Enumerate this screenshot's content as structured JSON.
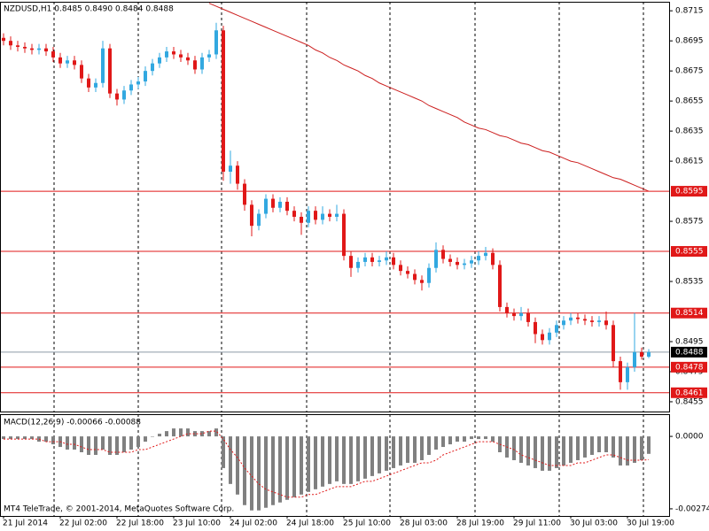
{
  "chart_data": [
    {
      "type": "candlestick",
      "title": "NZDUSD,H1  0.8485 0.8490 0.8484 0.8488",
      "x": [
        "21 Jul 2014",
        null,
        null,
        null,
        null,
        null,
        null,
        null,
        "22 Jul 02:00",
        null,
        null,
        null,
        null,
        null,
        null,
        null,
        "22 Jul 18:00",
        null,
        null,
        null,
        null,
        null,
        null,
        null,
        "23 Jul 10:00",
        null,
        null,
        null,
        null,
        null,
        null,
        null,
        "24 Jul 02:00",
        null,
        null,
        null,
        null,
        null,
        null,
        null,
        "24 Jul 18:00",
        null,
        null,
        null,
        null,
        null,
        null,
        null,
        "25 Jul 10:00",
        null,
        null,
        null,
        null,
        null,
        null,
        null,
        "28 Jul 03:00",
        null,
        null,
        null,
        null,
        null,
        null,
        null,
        "28 Jul 19:00",
        null,
        null,
        null,
        null,
        null,
        null,
        null,
        "29 Jul 11:00",
        null,
        null,
        null,
        null,
        null,
        null,
        null,
        "30 Jul 03:00",
        null,
        null,
        null,
        null,
        null,
        null,
        null,
        "30 Jul 19:00",
        null,
        null,
        null
      ],
      "open": [
        0.8697,
        0.8695,
        0.8692,
        0.8691,
        0.869,
        0.8689,
        0.869,
        0.8688,
        0.8684,
        0.868,
        0.8682,
        0.8679,
        0.867,
        0.8664,
        0.8667,
        0.869,
        0.866,
        0.8656,
        0.8662,
        0.8666,
        0.8668,
        0.8675,
        0.868,
        0.8684,
        0.8688,
        0.8686,
        0.8684,
        0.8682,
        0.8676,
        0.8684,
        0.8686,
        0.8702,
        0.8608,
        0.8612,
        0.86,
        0.8586,
        0.8572,
        0.858,
        0.859,
        0.8584,
        0.8588,
        0.8582,
        0.8578,
        0.8574,
        0.8582,
        0.8576,
        0.858,
        0.8578,
        0.858,
        0.8552,
        0.8544,
        0.8548,
        0.8551,
        0.8548,
        0.8549,
        0.8551,
        0.8546,
        0.8542,
        0.854,
        0.8536,
        0.8534,
        0.8544,
        0.8556,
        0.855,
        0.8548,
        0.8546,
        0.8547,
        0.8549,
        0.8552,
        0.8554,
        0.8546,
        0.8518,
        0.8514,
        0.8512,
        0.8514,
        0.8508,
        0.85,
        0.8496,
        0.8501,
        0.8506,
        0.8509,
        0.8511,
        0.851,
        0.8509,
        0.8508,
        0.8509,
        0.8506,
        0.8482,
        0.8468,
        0.8478,
        0.8488,
        0.8485
      ],
      "high": [
        0.87,
        0.8698,
        0.8695,
        0.8694,
        0.8693,
        0.8693,
        0.8693,
        0.8691,
        0.8687,
        0.8685,
        0.8685,
        0.8682,
        0.8673,
        0.867,
        0.8695,
        0.8693,
        0.8663,
        0.8665,
        0.8669,
        0.8671,
        0.8678,
        0.8683,
        0.8687,
        0.8691,
        0.8691,
        0.8689,
        0.8687,
        0.8685,
        0.8687,
        0.8689,
        0.8707,
        0.8705,
        0.8622,
        0.8615,
        0.8603,
        0.8589,
        0.8583,
        0.8593,
        0.8593,
        0.8591,
        0.8591,
        0.8585,
        0.8581,
        0.8585,
        0.8585,
        0.8585,
        0.8583,
        0.8586,
        0.8583,
        0.8555,
        0.8551,
        0.8554,
        0.8554,
        0.8552,
        0.8555,
        0.8554,
        0.8549,
        0.8545,
        0.8543,
        0.8539,
        0.8547,
        0.8561,
        0.8559,
        0.8553,
        0.8551,
        0.855,
        0.8552,
        0.8555,
        0.8558,
        0.8557,
        0.8549,
        0.8521,
        0.8517,
        0.8518,
        0.8517,
        0.8511,
        0.8503,
        0.8504,
        0.8509,
        0.8512,
        0.8514,
        0.8514,
        0.8513,
        0.8512,
        0.8512,
        0.8515,
        0.8509,
        0.8485,
        0.8481,
        0.8514,
        0.8491,
        0.849
      ],
      "low": [
        0.8692,
        0.8689,
        0.8688,
        0.8687,
        0.8686,
        0.8686,
        0.8685,
        0.8681,
        0.8677,
        0.8677,
        0.8676,
        0.8667,
        0.8661,
        0.8661,
        0.8664,
        0.8657,
        0.8652,
        0.8653,
        0.8659,
        0.8663,
        0.8665,
        0.8672,
        0.8677,
        0.8681,
        0.8683,
        0.8681,
        0.8679,
        0.8673,
        0.8673,
        0.8681,
        0.8683,
        0.8602,
        0.86,
        0.8596,
        0.8582,
        0.8565,
        0.8569,
        0.8577,
        0.8581,
        0.8581,
        0.8579,
        0.8575,
        0.8566,
        0.8571,
        0.8573,
        0.8573,
        0.8575,
        0.8575,
        0.8549,
        0.8538,
        0.8541,
        0.8545,
        0.8545,
        0.8545,
        0.8546,
        0.8543,
        0.8539,
        0.8537,
        0.8533,
        0.8529,
        0.8531,
        0.8541,
        0.8547,
        0.8545,
        0.8543,
        0.8543,
        0.8544,
        0.8546,
        0.8549,
        0.8543,
        0.8515,
        0.8511,
        0.8509,
        0.8509,
        0.8505,
        0.8494,
        0.8493,
        0.8493,
        0.8498,
        0.8503,
        0.8506,
        0.8507,
        0.8506,
        0.8505,
        0.8505,
        0.8503,
        0.8478,
        0.8463,
        0.8463,
        0.8475,
        0.8483,
        0.8484
      ],
      "close": [
        0.8695,
        0.8692,
        0.8691,
        0.869,
        0.8689,
        0.869,
        0.8688,
        0.8684,
        0.868,
        0.8682,
        0.8679,
        0.867,
        0.8664,
        0.8667,
        0.869,
        0.866,
        0.8656,
        0.8662,
        0.8666,
        0.8668,
        0.8675,
        0.868,
        0.8684,
        0.8688,
        0.8686,
        0.8684,
        0.8682,
        0.8676,
        0.8684,
        0.8686,
        0.8702,
        0.8608,
        0.8612,
        0.86,
        0.8586,
        0.8572,
        0.858,
        0.859,
        0.8584,
        0.8588,
        0.8582,
        0.8578,
        0.8574,
        0.8582,
        0.8576,
        0.858,
        0.8578,
        0.858,
        0.8552,
        0.8544,
        0.8548,
        0.8551,
        0.8548,
        0.8549,
        0.8551,
        0.8546,
        0.8542,
        0.854,
        0.8536,
        0.8534,
        0.8544,
        0.8556,
        0.855,
        0.8548,
        0.8546,
        0.8547,
        0.8549,
        0.8552,
        0.8554,
        0.8546,
        0.8518,
        0.8514,
        0.8512,
        0.8514,
        0.8508,
        0.85,
        0.8496,
        0.8501,
        0.8506,
        0.8509,
        0.8511,
        0.851,
        0.8509,
        0.8508,
        0.8509,
        0.8506,
        0.8482,
        0.8468,
        0.8478,
        0.8488,
        0.8485,
        0.8488
      ],
      "up_color": "#32a8e0",
      "down_color": "#e01818",
      "ma": {
        "color": "#cc1f1f",
        "values": [
          null,
          null,
          null,
          null,
          null,
          null,
          null,
          null,
          null,
          null,
          null,
          null,
          null,
          null,
          null,
          null,
          null,
          null,
          null,
          null,
          null,
          null,
          null,
          null,
          null,
          null,
          null,
          null,
          null,
          0.872,
          0.8718,
          0.8716,
          0.8714,
          0.8712,
          0.871,
          0.8708,
          0.8706,
          0.8704,
          0.8702,
          0.87,
          0.8698,
          0.8696,
          0.8694,
          0.8692,
          0.8689,
          0.8687,
          0.8684,
          0.8682,
          0.8679,
          0.8677,
          0.8675,
          0.8672,
          0.867,
          0.8667,
          0.8665,
          0.8663,
          0.8661,
          0.8659,
          0.8657,
          0.8655,
          0.8652,
          0.865,
          0.8648,
          0.8646,
          0.8644,
          0.8641,
          0.8639,
          0.8637,
          0.8636,
          0.8634,
          0.8632,
          0.8631,
          0.8629,
          0.8627,
          0.8626,
          0.8624,
          0.8622,
          0.8621,
          0.8619,
          0.8617,
          0.8615,
          0.8614,
          0.8612,
          0.861,
          0.8608,
          0.8606,
          0.8604,
          0.8603,
          0.8601,
          0.8599,
          0.8597,
          0.8595
        ]
      },
      "levels": {
        "color": "#e01818",
        "values": [
          0.8595,
          0.8555,
          0.8514,
          0.8478,
          0.8461
        ]
      },
      "price_line_color": "#8c9aa6",
      "ylim": [
        0.84485,
        0.8721
      ],
      "yticks": [
        0.8715,
        0.8695,
        0.8675,
        0.8655,
        0.8635,
        0.8615,
        0.8575,
        0.8535,
        0.8495,
        0.8475,
        0.8455
      ]
    },
    {
      "type": "macd",
      "title": "MACD(12,26,9) -0.00066 -0.00088",
      "histogram": {
        "color": "#808080",
        "values": [
          -0.0001,
          -0.0001,
          -0.0001,
          -0.0001,
          -0.0001,
          -0.0002,
          -0.0002,
          -0.0003,
          -0.0004,
          -0.0005,
          -0.0005,
          -0.0006,
          -0.0007,
          -0.0007,
          -0.0005,
          -0.0007,
          -0.0007,
          -0.0006,
          -0.0005,
          -0.0004,
          -0.0002,
          0.0,
          0.0001,
          0.0002,
          0.0003,
          0.0003,
          0.0003,
          0.0002,
          0.0002,
          0.0002,
          0.0003,
          -0.0012,
          -0.0018,
          -0.0022,
          -0.0026,
          -0.0028,
          -0.0028,
          -0.0027,
          -0.0026,
          -0.0025,
          -0.0024,
          -0.0023,
          -0.0022,
          -0.0021,
          -0.002,
          -0.0019,
          -0.0018,
          -0.0017,
          -0.0018,
          -0.0018,
          -0.0017,
          -0.0016,
          -0.0015,
          -0.0014,
          -0.0013,
          -0.0012,
          -0.0011,
          -0.001,
          -0.001,
          -0.0009,
          -0.0007,
          -0.0005,
          -0.0004,
          -0.0003,
          -0.0002,
          -0.0002,
          -0.0001,
          -0.0001,
          -0.0001,
          -0.0002,
          -0.0006,
          -0.0008,
          -0.0009,
          -0.001,
          -0.0011,
          -0.0012,
          -0.0013,
          -0.0013,
          -0.0012,
          -0.0011,
          -0.001,
          -0.0009,
          -0.0008,
          -0.0007,
          -0.0006,
          -0.0006,
          -0.0008,
          -0.0011,
          -0.0011,
          -0.001,
          -0.0009,
          -0.00066
        ]
      },
      "signal": {
        "color": "#e01818",
        "values": [
          -0.0001,
          -0.0001,
          -0.0001,
          -0.0001,
          -0.0001,
          -0.0001,
          -0.0002,
          -0.0002,
          -0.0002,
          -0.0003,
          -0.0003,
          -0.0004,
          -0.0005,
          -0.0005,
          -0.0005,
          -0.0006,
          -0.0006,
          -0.0006,
          -0.0006,
          -0.0005,
          -0.0005,
          -0.0004,
          -0.0003,
          -0.0002,
          -0.0001,
          0.0,
          0.0001,
          0.0001,
          0.0001,
          0.0002,
          0.0002,
          -0.0001,
          -0.0005,
          -0.0008,
          -0.0012,
          -0.0015,
          -0.0018,
          -0.002,
          -0.0021,
          -0.0022,
          -0.0023,
          -0.0023,
          -0.0023,
          -0.0022,
          -0.0022,
          -0.0021,
          -0.002,
          -0.0019,
          -0.0019,
          -0.0019,
          -0.0018,
          -0.0017,
          -0.0017,
          -0.0016,
          -0.0015,
          -0.0014,
          -0.0013,
          -0.0012,
          -0.0011,
          -0.001,
          -0.001,
          -0.0009,
          -0.0007,
          -0.0006,
          -0.0005,
          -0.0004,
          -0.0003,
          -0.0002,
          -0.0002,
          -0.0002,
          -0.0003,
          -0.0004,
          -0.0005,
          -0.0007,
          -0.0008,
          -0.0009,
          -0.001,
          -0.0011,
          -0.0011,
          -0.0011,
          -0.0011,
          -0.001,
          -0.001,
          -0.0009,
          -0.0008,
          -0.0007,
          -0.0007,
          -0.0008,
          -0.0009,
          -0.0009,
          -0.0009,
          -0.00088
        ]
      },
      "ylim": [
        -0.00301,
        0.00084
      ],
      "yticks": [
        {
          "value": 0,
          "label": "0.0000"
        },
        -0.00274
      ]
    }
  ],
  "footer": "MT4 TeleTrade, © 2001-2014, MetaQuotes Software Corp."
}
